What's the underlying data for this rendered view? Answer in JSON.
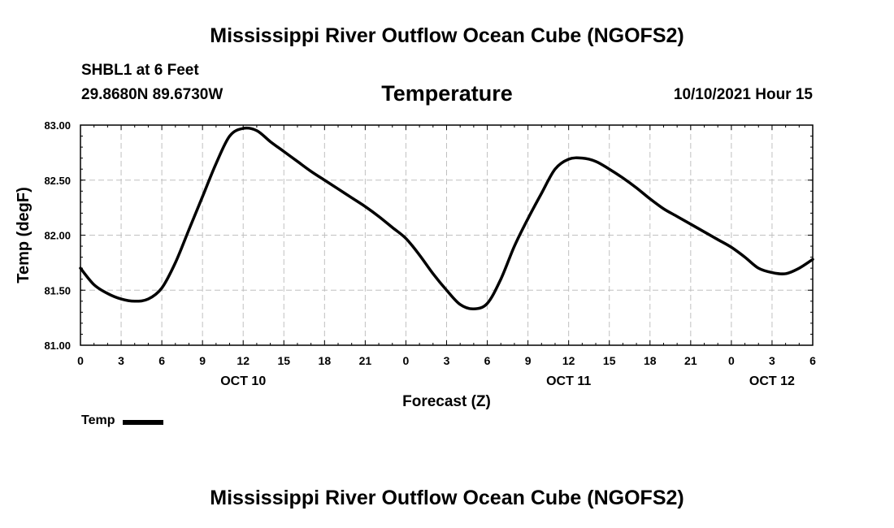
{
  "header": {
    "title": "Mississippi River Outflow Ocean Cube (NGOFS2)",
    "station": "SHBL1 at 6 Feet",
    "coords": "29.8680N  89.6730W",
    "plot_title": "Temperature",
    "datetime": "10/10/2021 Hour 15"
  },
  "footer": {
    "title": "Mississippi River Outflow Ocean Cube (NGOFS2)"
  },
  "chart_data": {
    "type": "line",
    "title": "Temperature",
    "xlabel": "Forecast (Z)",
    "ylabel": "Temp (degF)",
    "xlim": [
      0,
      54
    ],
    "ylim": [
      81.0,
      83.0
    ],
    "x_ticks": [
      0,
      3,
      6,
      9,
      12,
      15,
      18,
      21,
      24,
      27,
      30,
      33,
      36,
      39,
      42,
      45,
      48,
      51,
      54
    ],
    "x_tick_labels": [
      "0",
      "3",
      "6",
      "9",
      "12",
      "15",
      "18",
      "21",
      "0",
      "3",
      "6",
      "9",
      "12",
      "15",
      "18",
      "21",
      "0",
      "3",
      "6"
    ],
    "y_ticks": [
      81.0,
      81.5,
      82.0,
      82.5,
      83.0
    ],
    "y_tick_labels": [
      "81.00",
      "81.50",
      "82.00",
      "82.50",
      "83.00"
    ],
    "day_labels": [
      {
        "x": 12,
        "label": "OCT 10"
      },
      {
        "x": 36,
        "label": "OCT 11"
      },
      {
        "x": 51,
        "label": "OCT 12"
      }
    ],
    "grid": true,
    "legend_position": "bottom-left",
    "series": [
      {
        "name": "Temp",
        "color": "#000000",
        "x": [
          0,
          1,
          2,
          3,
          4,
          5,
          6,
          7,
          8,
          9,
          10,
          11,
          12,
          13,
          14,
          15,
          16,
          17,
          18,
          19,
          20,
          21,
          22,
          23,
          24,
          25,
          26,
          27,
          28,
          29,
          30,
          31,
          32,
          33,
          34,
          35,
          36,
          37,
          38,
          39,
          40,
          41,
          42,
          43,
          44,
          45,
          46,
          47,
          48,
          49,
          50,
          51,
          52,
          53,
          54
        ],
        "y": [
          81.7,
          81.55,
          81.47,
          81.42,
          81.4,
          81.42,
          81.52,
          81.75,
          82.05,
          82.35,
          82.65,
          82.9,
          82.97,
          82.95,
          82.85,
          82.76,
          82.67,
          82.58,
          82.5,
          82.42,
          82.34,
          82.26,
          82.17,
          82.07,
          81.97,
          81.82,
          81.65,
          81.5,
          81.37,
          81.33,
          81.38,
          81.6,
          81.9,
          82.15,
          82.38,
          82.6,
          82.69,
          82.7,
          82.67,
          82.6,
          82.52,
          82.43,
          82.33,
          82.24,
          82.17,
          82.1,
          82.03,
          81.96,
          81.89,
          81.8,
          81.7,
          81.66,
          81.65,
          81.7,
          81.78
        ]
      }
    ]
  }
}
